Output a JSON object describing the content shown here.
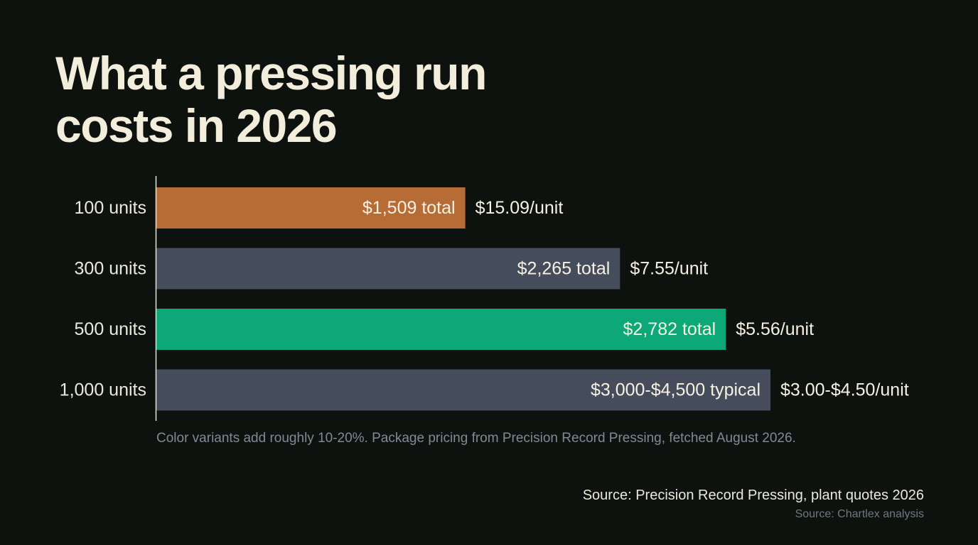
{
  "chart_data": {
    "type": "bar",
    "orientation": "horizontal",
    "title": "What a pressing run costs in 2026",
    "categories": [
      "100 units",
      "300 units",
      "500 units",
      "1,000 units"
    ],
    "values": [
      1509,
      2265,
      2782,
      3000
    ],
    "value_labels": [
      "$1,509 total",
      "$2,265 total",
      "$2,782 total",
      "$3,000-$4,500 typical"
    ],
    "per_unit_labels": [
      "$15.09/unit",
      "$7.55/unit",
      "$5.56/unit",
      "$3.00-$4.50/unit"
    ],
    "bar_colors": [
      "#b86c35",
      "#454c5c",
      "#0ca878",
      "#454c5c"
    ],
    "xlim": [
      0,
      3500
    ],
    "grid": false,
    "legend": "none",
    "xlabel": "",
    "ylabel": ""
  },
  "note": "Color variants add roughly 10-20%. Package pricing from Precision Record Pressing, fetched August 2026.",
  "source": "Source: Precision Record Pressing, plant quotes 2026",
  "source_secondary": "Source: Chartlex analysis"
}
